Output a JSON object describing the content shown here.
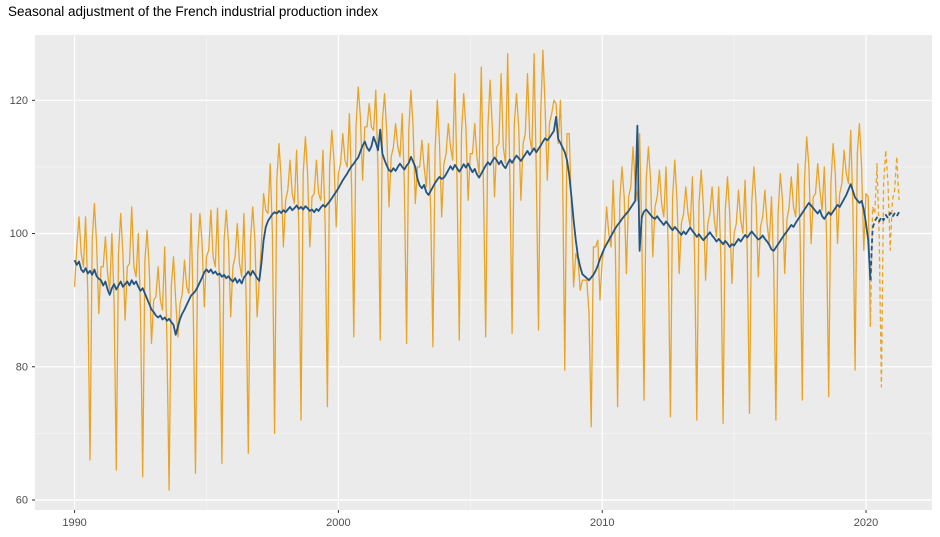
{
  "chart_data": {
    "type": "line",
    "title": "Seasonal adjustment of the French industrial production index",
    "xlabel": "",
    "ylabel": "",
    "x_domain": [
      1988.5,
      2022.5
    ],
    "y_domain": [
      58.5,
      129.8
    ],
    "x_ticks": [
      1990,
      2000,
      2010,
      2020
    ],
    "x_minor": [
      1995,
      2005,
      2015
    ],
    "y_ticks": [
      60,
      80,
      100,
      120
    ],
    "y_minor": [
      70,
      90,
      110
    ],
    "grid": "on",
    "legend": "none",
    "theme": {
      "panel_bg": "#EBEBEB",
      "grid_major": "#FFFFFF",
      "grid_minor": "#F5F5F5",
      "tick_label_color": "#4D4D4D",
      "tick_mark_color": "#333333",
      "raw_color": "#E9A426",
      "sa_color": "#245480"
    },
    "series": [
      {
        "name": "raw-unadjusted",
        "color": "#E9A426",
        "style": "solid",
        "width": 1.3,
        "start": 1990.0,
        "freq": 12,
        "values": [
          92,
          98,
          102.5,
          97,
          95,
          102.5,
          91,
          66,
          99,
          104.5,
          98.5,
          88,
          95,
          95,
          99.5,
          94,
          91.5,
          100,
          89.5,
          64.5,
          97,
          103,
          97,
          87,
          95,
          95.5,
          104,
          95,
          93.5,
          100,
          88.5,
          63.5,
          96,
          100.5,
          94.5,
          83.5,
          90,
          90.5,
          95,
          90,
          88.5,
          98,
          84,
          61.5,
          92,
          96.5,
          90,
          84.5,
          89.5,
          91,
          96,
          92,
          91,
          103,
          88,
          64,
          97,
          103,
          98.5,
          89,
          96.5,
          97.5,
          103.5,
          96.5,
          95,
          103.8,
          91,
          65.5,
          99,
          103.5,
          98.5,
          87.5,
          95,
          96.5,
          101.5,
          95.5,
          93.5,
          103,
          90.5,
          67,
          99,
          104,
          99,
          87.5,
          93,
          98.5,
          106,
          103.5,
          103,
          110.5,
          100,
          70,
          108,
          113.5,
          108,
          98,
          105,
          106.5,
          111,
          106,
          104.5,
          112.5,
          101,
          72,
          109,
          114.5,
          109,
          98,
          105.5,
          106,
          111,
          106,
          105,
          112.5,
          101,
          74,
          110,
          115.5,
          111,
          101,
          109,
          110.5,
          115,
          111,
          110,
          118,
          107,
          84.5,
          116,
          122,
          117.5,
          108,
          116,
          116,
          119.5,
          116,
          115.5,
          121.5,
          109.5,
          84,
          117,
          121,
          115,
          104,
          111.5,
          113,
          116.5,
          113,
          111.5,
          118,
          107,
          83.5,
          115.5,
          121.5,
          116,
          104.5,
          110,
          110,
          114,
          110,
          107,
          113.5,
          103.5,
          83,
          112.5,
          120,
          113.5,
          102.5,
          110.5,
          112,
          116.5,
          113,
          111,
          124,
          107,
          84,
          115,
          121,
          116,
          105,
          112,
          112,
          116.5,
          111.5,
          109,
          125,
          106.5,
          84.5,
          116,
          123,
          116,
          105.5,
          113,
          113.5,
          124,
          113,
          110.5,
          127,
          108,
          85,
          116.5,
          121,
          116,
          105,
          113.5,
          115,
          124,
          114.5,
          112.5,
          127,
          109,
          85.5,
          118,
          127.5,
          119,
          108,
          116.5,
          118,
          120,
          119.5,
          113.5,
          120,
          109,
          79.5,
          115,
          115,
          104,
          92,
          97,
          96,
          91.5,
          93,
          93,
          93,
          88,
          71,
          98,
          98,
          99,
          90,
          96,
          98,
          104,
          100,
          98,
          108,
          97.5,
          74,
          105,
          110,
          105.5,
          94,
          105.5,
          107,
          113,
          107.5,
          105,
          115,
          99.5,
          75,
          108,
          113,
          108,
          96.5,
          104,
          105.5,
          109.5,
          104.5,
          102.5,
          110,
          98,
          72.5,
          105.5,
          111,
          105,
          94,
          101.5,
          103,
          107,
          103,
          101,
          108.5,
          97,
          72,
          104.5,
          109.5,
          104,
          93,
          101.5,
          103,
          107,
          102,
          99.5,
          107,
          96,
          71.5,
          103.5,
          108.5,
          103,
          92.5,
          100,
          101.5,
          106.5,
          102,
          100,
          108,
          97,
          73,
          104.5,
          110,
          104.5,
          93.5,
          101,
          102.5,
          106.5,
          101.5,
          98.5,
          105.5,
          95,
          72,
          103,
          109,
          105,
          94,
          102,
          104,
          108.5,
          104,
          102.5,
          110.5,
          100,
          75,
          108,
          114.5,
          110,
          98.5,
          105.5,
          106,
          110.5,
          106.5,
          103.5,
          110,
          100,
          75.5,
          107.5,
          113.5,
          109,
          98.5,
          106,
          107.5,
          112.5,
          109,
          107.5,
          115.5,
          104,
          79.5,
          112,
          116.5,
          110,
          97.5,
          106,
          105.5,
          86
        ]
      },
      {
        "name": "raw-forecast",
        "color": "#E9A426",
        "style": "dashed",
        "width": 1.3,
        "start": 2020.1667,
        "freq": 12,
        "values": [
          86,
          104,
          103,
          110.5,
          99.5,
          77,
          107.5,
          112.5,
          107.5,
          97.5,
          105,
          106.5,
          111.5,
          105
        ]
      },
      {
        "name": "seasonally-adjusted",
        "color": "#245480",
        "style": "solid",
        "width": 1.8,
        "start": 1990.0,
        "freq": 12,
        "values": [
          96,
          95.3,
          95.8,
          94.6,
          94.2,
          94.8,
          94,
          94.4,
          93.8,
          94.6,
          93.6,
          93.2,
          93,
          92.2,
          92.8,
          91.6,
          90.8,
          91.8,
          92.4,
          91.6,
          92.2,
          92.8,
          92,
          92.4,
          92.8,
          92.2,
          93,
          92.4,
          92.8,
          92,
          91.4,
          91.8,
          91,
          90.2,
          89.4,
          88.6,
          88.2,
          87.7,
          87.4,
          87.7,
          87.1,
          87.4,
          86.9,
          87.2,
          86.7,
          86.3,
          84.8,
          86,
          87.2,
          88,
          88.6,
          89.3,
          90,
          90.7,
          91,
          91.4,
          92,
          92.7,
          93.4,
          94.2,
          94.6,
          94.2,
          94.6,
          94,
          94.3,
          93.8,
          94,
          93.5,
          93.8,
          93.3,
          93.6,
          93.1,
          92.8,
          93.3,
          92.6,
          93.1,
          92.5,
          93.4,
          93.8,
          94.3,
          93.7,
          94.4,
          93.9,
          93.3,
          92.9,
          95.5,
          99,
          101,
          101.9,
          102.4,
          102.9,
          103.2,
          103,
          103.4,
          103.1,
          103.5,
          103.2,
          103.6,
          104,
          103.5,
          103.8,
          104.2,
          103.7,
          104,
          103.6,
          104.1,
          103.8,
          103.4,
          103.6,
          103.2,
          103.7,
          103.4,
          103.9,
          104.3,
          104,
          104.4,
          104.8,
          105.3,
          105.8,
          106.3,
          106.8,
          107.4,
          108,
          108.5,
          109,
          109.6,
          110.1,
          110.5,
          111,
          111.4,
          112.3,
          113.2,
          113.8,
          112.9,
          112.4,
          113.1,
          114.5,
          113.6,
          112.5,
          115.6,
          112,
          111,
          110.2,
          109.5,
          109.3,
          109.8,
          109.4,
          110,
          110.5,
          110,
          109.6,
          110.2,
          110.6,
          111.5,
          110.8,
          110,
          108.2,
          107.2,
          106.8,
          107.3,
          106.2,
          105.8,
          106.4,
          107,
          107.6,
          108.1,
          108.5,
          108.2,
          108.4,
          108.9,
          109.5,
          110.1,
          109.6,
          110.3,
          109.8,
          109.3,
          109.8,
          110.4,
          109.9,
          110.5,
          109.8,
          109.2,
          109.7,
          108.9,
          108.4,
          109,
          109.6,
          110.2,
          110.7,
          110.3,
          110.9,
          111.4,
          111,
          110.4,
          110.9,
          110.2,
          109.8,
          110.5,
          111.1,
          110.6,
          111.2,
          111.7,
          111.3,
          110.9,
          111.4,
          111.9,
          112.4,
          111.8,
          112.3,
          112.8,
          112.2,
          112.7,
          113.2,
          113.8,
          114.3,
          114,
          114.4,
          114.9,
          115.4,
          117.5,
          114.2,
          113.6,
          112.9,
          112.2,
          111,
          108.8,
          105.6,
          102,
          99,
          96.5,
          95,
          93.9,
          93.6,
          93.3,
          93,
          93.4,
          93.8,
          94.4,
          95.2,
          96.2,
          97,
          97.8,
          98.4,
          99,
          99.6,
          100.2,
          100.8,
          101.3,
          101.7,
          102.2,
          102.6,
          103,
          103.4,
          103.9,
          104.4,
          104.9,
          116.2,
          97.4,
          102.5,
          103.3,
          103.6,
          103.2,
          102.8,
          102.4,
          102.2,
          102.6,
          102.1,
          101.7,
          101.3,
          101.8,
          101.4,
          100.9,
          100.5,
          101,
          100.6,
          100.2,
          99.8,
          100.3,
          99.9,
          100.4,
          100.9,
          100.4,
          100,
          99.5,
          99.9,
          99.4,
          99,
          99.4,
          99.8,
          100.2,
          99.7,
          99.3,
          98.8,
          99.2,
          98.8,
          98.4,
          98.9,
          98.5,
          98,
          98.4,
          98.2,
          98.7,
          99.2,
          98.8,
          99.3,
          99.8,
          99.4,
          99.9,
          100.3,
          99.9,
          99.5,
          99.1,
          99.3,
          99.7,
          99.2,
          98.8,
          98.3,
          97.6,
          97.4,
          97.9,
          98.4,
          98.9,
          99.4,
          99.9,
          100.3,
          100.8,
          101.3,
          101,
          101.6,
          102.1,
          102.6,
          103.1,
          103.6,
          104.1,
          104.6,
          104.2,
          103.8,
          103.4,
          103,
          103.5,
          102.6,
          102.2,
          102.7,
          103.2,
          102.8,
          103.3,
          103.8,
          104.3,
          104,
          104.6,
          105.2,
          105.8,
          106.6,
          107.4,
          106.4,
          105.4,
          105,
          104.6,
          104.9,
          103.6,
          101.5,
          99,
          93
        ]
      },
      {
        "name": "sa-forecast",
        "color": "#245480",
        "style": "dashed",
        "width": 1.8,
        "start": 2020.1667,
        "freq": 12,
        "values": [
          93,
          100.8,
          101.9,
          102.4,
          101.8,
          102.5,
          102,
          102.8,
          102.3,
          103.1,
          102.5,
          103,
          102.6,
          103.2
        ]
      }
    ]
  }
}
